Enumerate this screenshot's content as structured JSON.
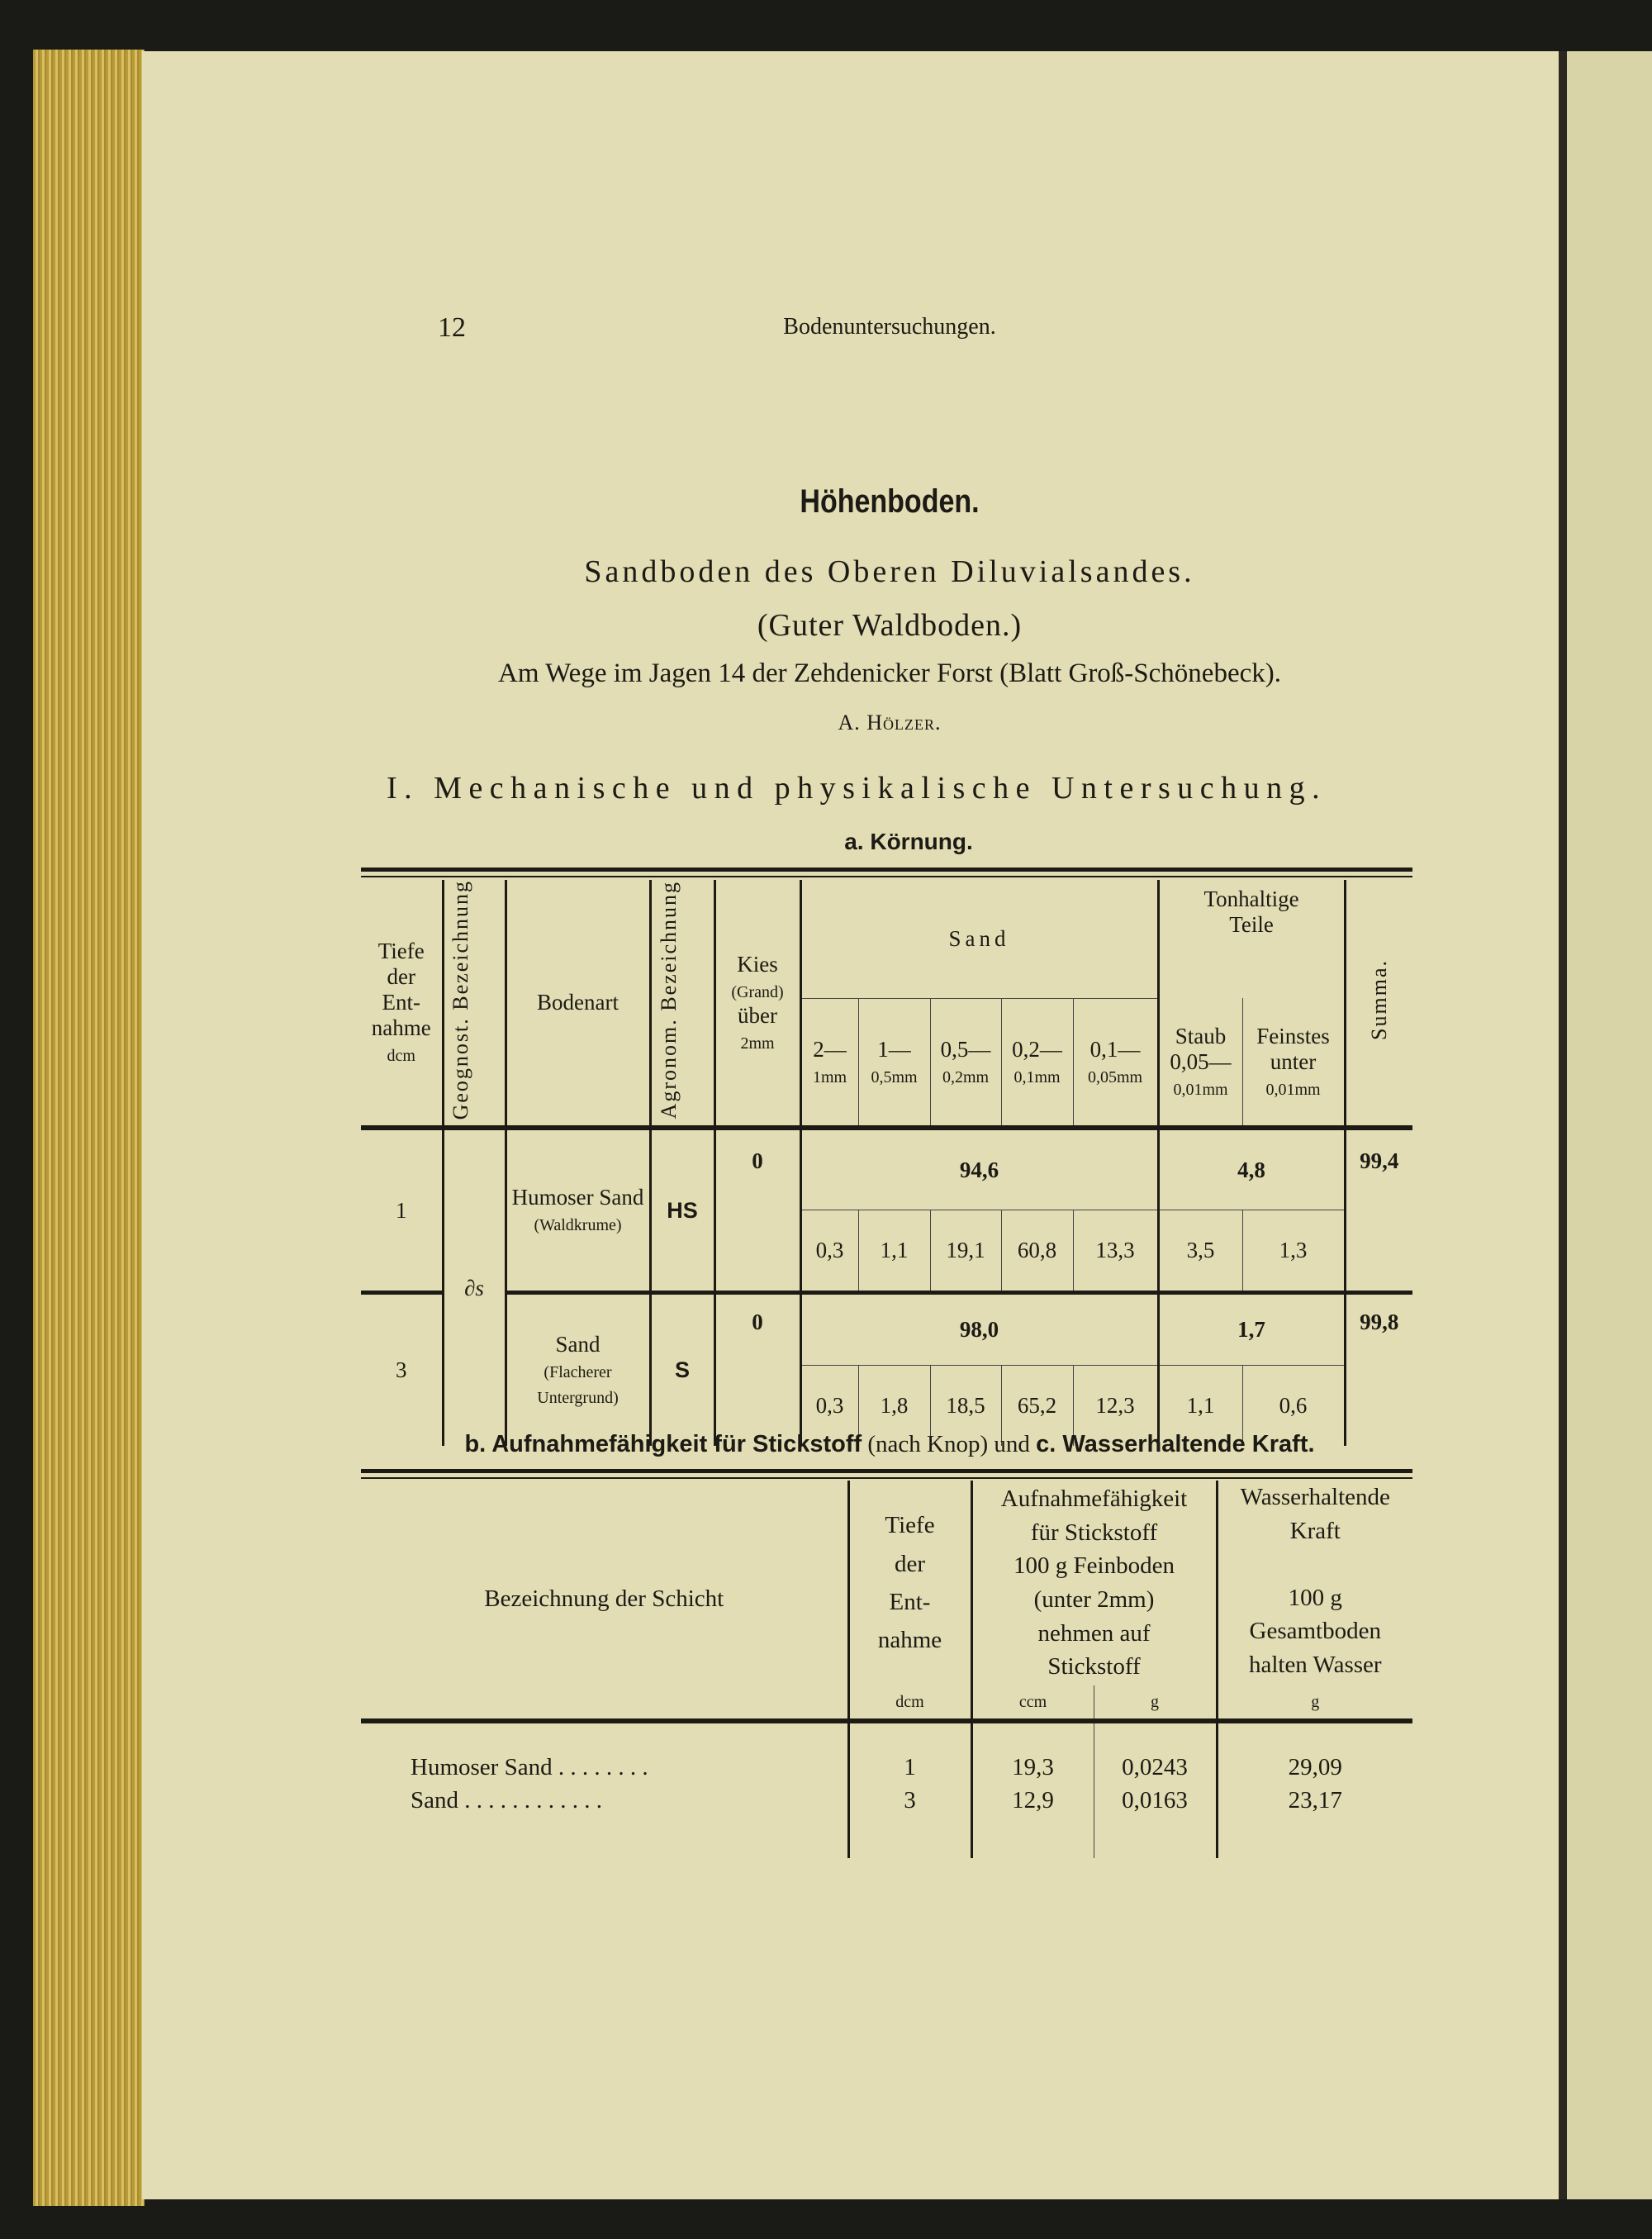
{
  "header": {
    "page_number": "12",
    "running_title": "Bodenuntersuchungen."
  },
  "title": "Höhenboden.",
  "subtitle": "Sandboden des Oberen Diluvialsandes.",
  "subtitle2": "(Guter Waldboden.)",
  "location": "Am Wege im Jagen 14 der Zehdenicker Forst (Blatt Groß-Schönebeck).",
  "author": "A. Hölzer.",
  "section1": "I. Mechanische und physikalische Untersuchung.",
  "section1a": "a. Körnung.",
  "table1": {
    "headers": {
      "tiefe": [
        "Tiefe",
        "der",
        "Ent-",
        "nahme"
      ],
      "tiefe_unit": "dcm",
      "geognost": "Geognost. Bezeichnung",
      "bodenart": "Bodenart",
      "agronom": "Agronom. Bezeichnung",
      "kies": [
        "Kies",
        "(Grand)",
        "über",
        "2mm"
      ],
      "sand": "Sand",
      "tonhaltige": [
        "Tonhaltige",
        "Teile"
      ],
      "staub": "Staub",
      "feinstes": "Feinstes",
      "summa": "Summa.",
      "sub": [
        [
          "2—",
          "1mm"
        ],
        [
          "1—",
          "0,5mm"
        ],
        [
          "0,5—",
          "0,2mm"
        ],
        [
          "0,2—",
          "0,1mm"
        ],
        [
          "0,1—",
          "0,05mm"
        ],
        [
          "0,05—",
          "0,01mm"
        ],
        [
          "unter",
          "0,01mm"
        ]
      ]
    },
    "geognost_value": "∂s",
    "rows": [
      {
        "tiefe": "1",
        "bodenart": "Humoser Sand",
        "bodenart_note": "(Waldkrume)",
        "agronom": "HS",
        "kies": "0",
        "sand_total": "94,6",
        "ton_total": "4,8",
        "summa": "99,4",
        "values": [
          "0,3",
          "1,1",
          "19,1",
          "60,8",
          "13,3",
          "3,5",
          "1,3"
        ]
      },
      {
        "tiefe": "3",
        "bodenart": "Sand",
        "bodenart_note": "(Flacherer Untergrund)",
        "agronom": "S",
        "kies": "0",
        "sand_total": "98,0",
        "ton_total": "1,7",
        "summa": "99,8",
        "values": [
          "0,3",
          "1,8",
          "18,5",
          "65,2",
          "12,3",
          "1,1",
          "0,6"
        ]
      }
    ]
  },
  "section_b": {
    "b": "b. Aufnahmefähigkeit für Stickstoff",
    "b_note": "(nach Knop)",
    "und": "und",
    "c": "c. Wasserhaltende Kraft."
  },
  "table2": {
    "headers": {
      "schicht": "Bezeichnung der Schicht",
      "tiefe": [
        "Tiefe",
        "der",
        "Ent-",
        "nahme"
      ],
      "tiefe_unit": "dcm",
      "aufnahme": [
        "Aufnahmefähigkeit",
        "für Stickstoff",
        "100 g Feinboden",
        "(unter 2mm)",
        "nehmen auf",
        "Stickstoff"
      ],
      "ccm": "ccm",
      "g": "g",
      "wasser": [
        "Wasserhaltende",
        "Kraft",
        "100 g",
        "Gesamtboden",
        "halten Wasser"
      ],
      "wasser_unit": "g"
    },
    "rows": [
      {
        "schicht": "Humoser Sand . . . . . . . .",
        "tiefe": "1",
        "ccm": "19,3",
        "g": "0,0243",
        "wasser": "29,09"
      },
      {
        "schicht": "Sand . . . . . . . . . . . .",
        "tiefe": "3",
        "ccm": "12,9",
        "g": "0,0163",
        "wasser": "23,17"
      }
    ]
  }
}
